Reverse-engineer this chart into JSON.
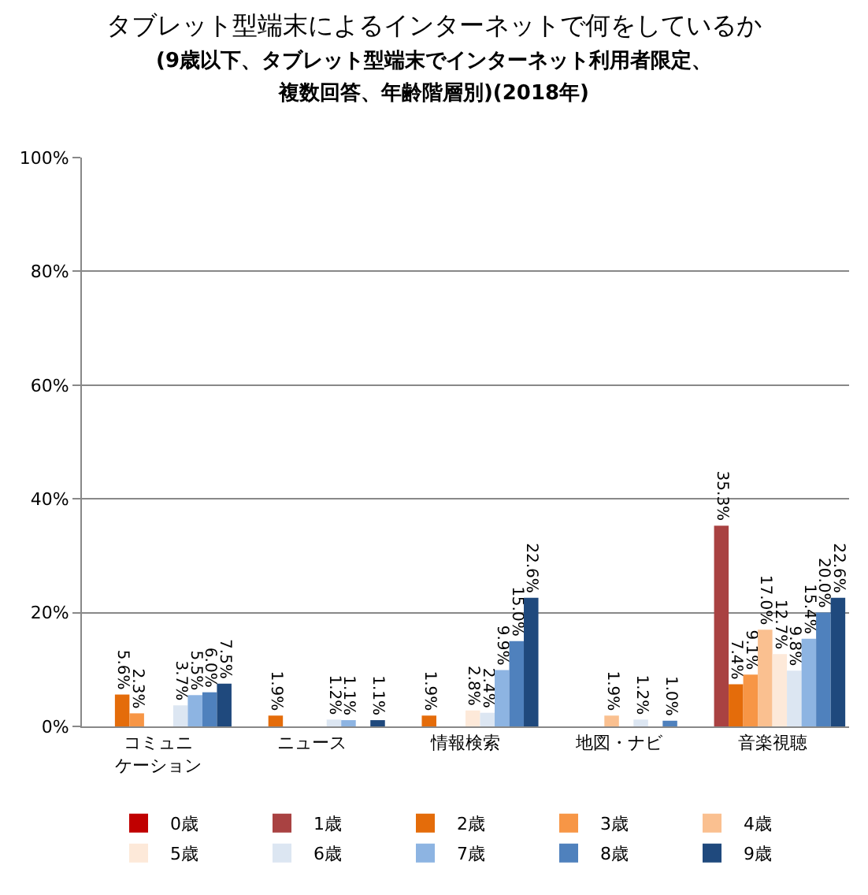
{
  "chart_data": {
    "type": "bar",
    "title": "タブレット型端末によるインターネットで何をしているか",
    "subtitle": "(9歳以下、タブレット型端末でインターネット利用者限定、複数回答、年齢階層別)(2018年)",
    "categories": [
      "コミュニケーション",
      "ニュース",
      "情報検索",
      "地図・ナビ",
      "音楽視聴"
    ],
    "series": [
      {
        "name": "0歳",
        "color": "#c00000",
        "values": [
          null,
          null,
          null,
          null,
          null
        ],
        "value_labels": [
          null,
          null,
          null,
          null,
          null
        ]
      },
      {
        "name": "1歳",
        "color": "#a94242",
        "values": [
          null,
          null,
          null,
          null,
          35.3
        ],
        "value_labels": [
          null,
          null,
          null,
          null,
          "35.3%"
        ]
      },
      {
        "name": "2歳",
        "color": "#e46c0a",
        "values": [
          5.6,
          1.9,
          1.9,
          null,
          7.4
        ],
        "value_labels": [
          "5.6%",
          "1.9%",
          "1.9%",
          null,
          "7.4%"
        ]
      },
      {
        "name": "3歳",
        "color": "#f79646",
        "values": [
          2.3,
          null,
          null,
          null,
          9.1
        ],
        "value_labels": [
          "2.3%",
          null,
          null,
          null,
          "9.1%"
        ]
      },
      {
        "name": "4歳",
        "color": "#fac090",
        "values": [
          null,
          null,
          null,
          1.9,
          17.0
        ],
        "value_labels": [
          null,
          null,
          null,
          "1.9%",
          "17.0%"
        ]
      },
      {
        "name": "5歳",
        "color": "#fde9d9",
        "values": [
          null,
          null,
          2.8,
          null,
          12.7
        ],
        "value_labels": [
          null,
          null,
          "2.8%",
          null,
          "12.7%"
        ]
      },
      {
        "name": "6歳",
        "color": "#dce6f2",
        "values": [
          3.7,
          1.2,
          2.4,
          1.2,
          9.8
        ],
        "value_labels": [
          "3.7%",
          "1.2%",
          "2.4%",
          "1.2%",
          "9.8%"
        ]
      },
      {
        "name": "7歳",
        "color": "#8db4e2",
        "values": [
          5.5,
          1.1,
          9.9,
          null,
          15.4
        ],
        "value_labels": [
          "5.5%",
          "1.1%",
          "9.9%",
          null,
          "15.4%"
        ]
      },
      {
        "name": "8歳",
        "color": "#4f81bd",
        "values": [
          6.0,
          null,
          15.0,
          1.0,
          20.0
        ],
        "value_labels": [
          "6.0%",
          null,
          "15.0%",
          "1.0%",
          "20.0%"
        ]
      },
      {
        "name": "9歳",
        "color": "#1f497d",
        "values": [
          7.5,
          1.1,
          22.6,
          null,
          22.6
        ],
        "value_labels": [
          "7.5%",
          "1.1%",
          "22.6%",
          null,
          "22.6%"
        ]
      }
    ],
    "ylim": [
      0,
      100
    ],
    "yticks": [
      {
        "value": 0,
        "label": "0%"
      },
      {
        "value": 20,
        "label": "20%"
      },
      {
        "value": 40,
        "label": "40%"
      },
      {
        "value": 60,
        "label": "60%"
      },
      {
        "value": 80,
        "label": "80%"
      },
      {
        "value": 100,
        "label": "100%"
      }
    ],
    "grid": "y",
    "legend": "bottom"
  }
}
